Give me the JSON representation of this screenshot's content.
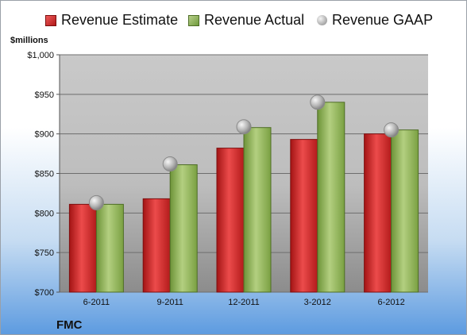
{
  "chart_data": {
    "type": "bar",
    "ylabel": "$millions",
    "categories": [
      "6-2011",
      "9-2011",
      "12-2011",
      "3-2012",
      "6-2012"
    ],
    "series": [
      {
        "name": "Revenue Estimate",
        "kind": "bar",
        "values": [
          811,
          818,
          882,
          893,
          900
        ],
        "color": "#c81e1e"
      },
      {
        "name": "Revenue Actual",
        "kind": "bar",
        "values": [
          811,
          861,
          908,
          940,
          905
        ],
        "color": "#8db352"
      },
      {
        "name": "Revenue GAAP",
        "kind": "marker",
        "values": [
          813,
          862,
          909,
          940,
          905
        ],
        "color": "#a9a9a9"
      }
    ],
    "ylim": [
      700,
      1000
    ],
    "yticks": [
      700,
      750,
      800,
      850,
      900,
      950,
      1000
    ],
    "ytick_labels": [
      "$700",
      "$750",
      "$800",
      "$850",
      "$900",
      "$950",
      "$1,000"
    ],
    "grid": true,
    "legend_position": "top"
  },
  "footer": {
    "company": "FMC"
  }
}
